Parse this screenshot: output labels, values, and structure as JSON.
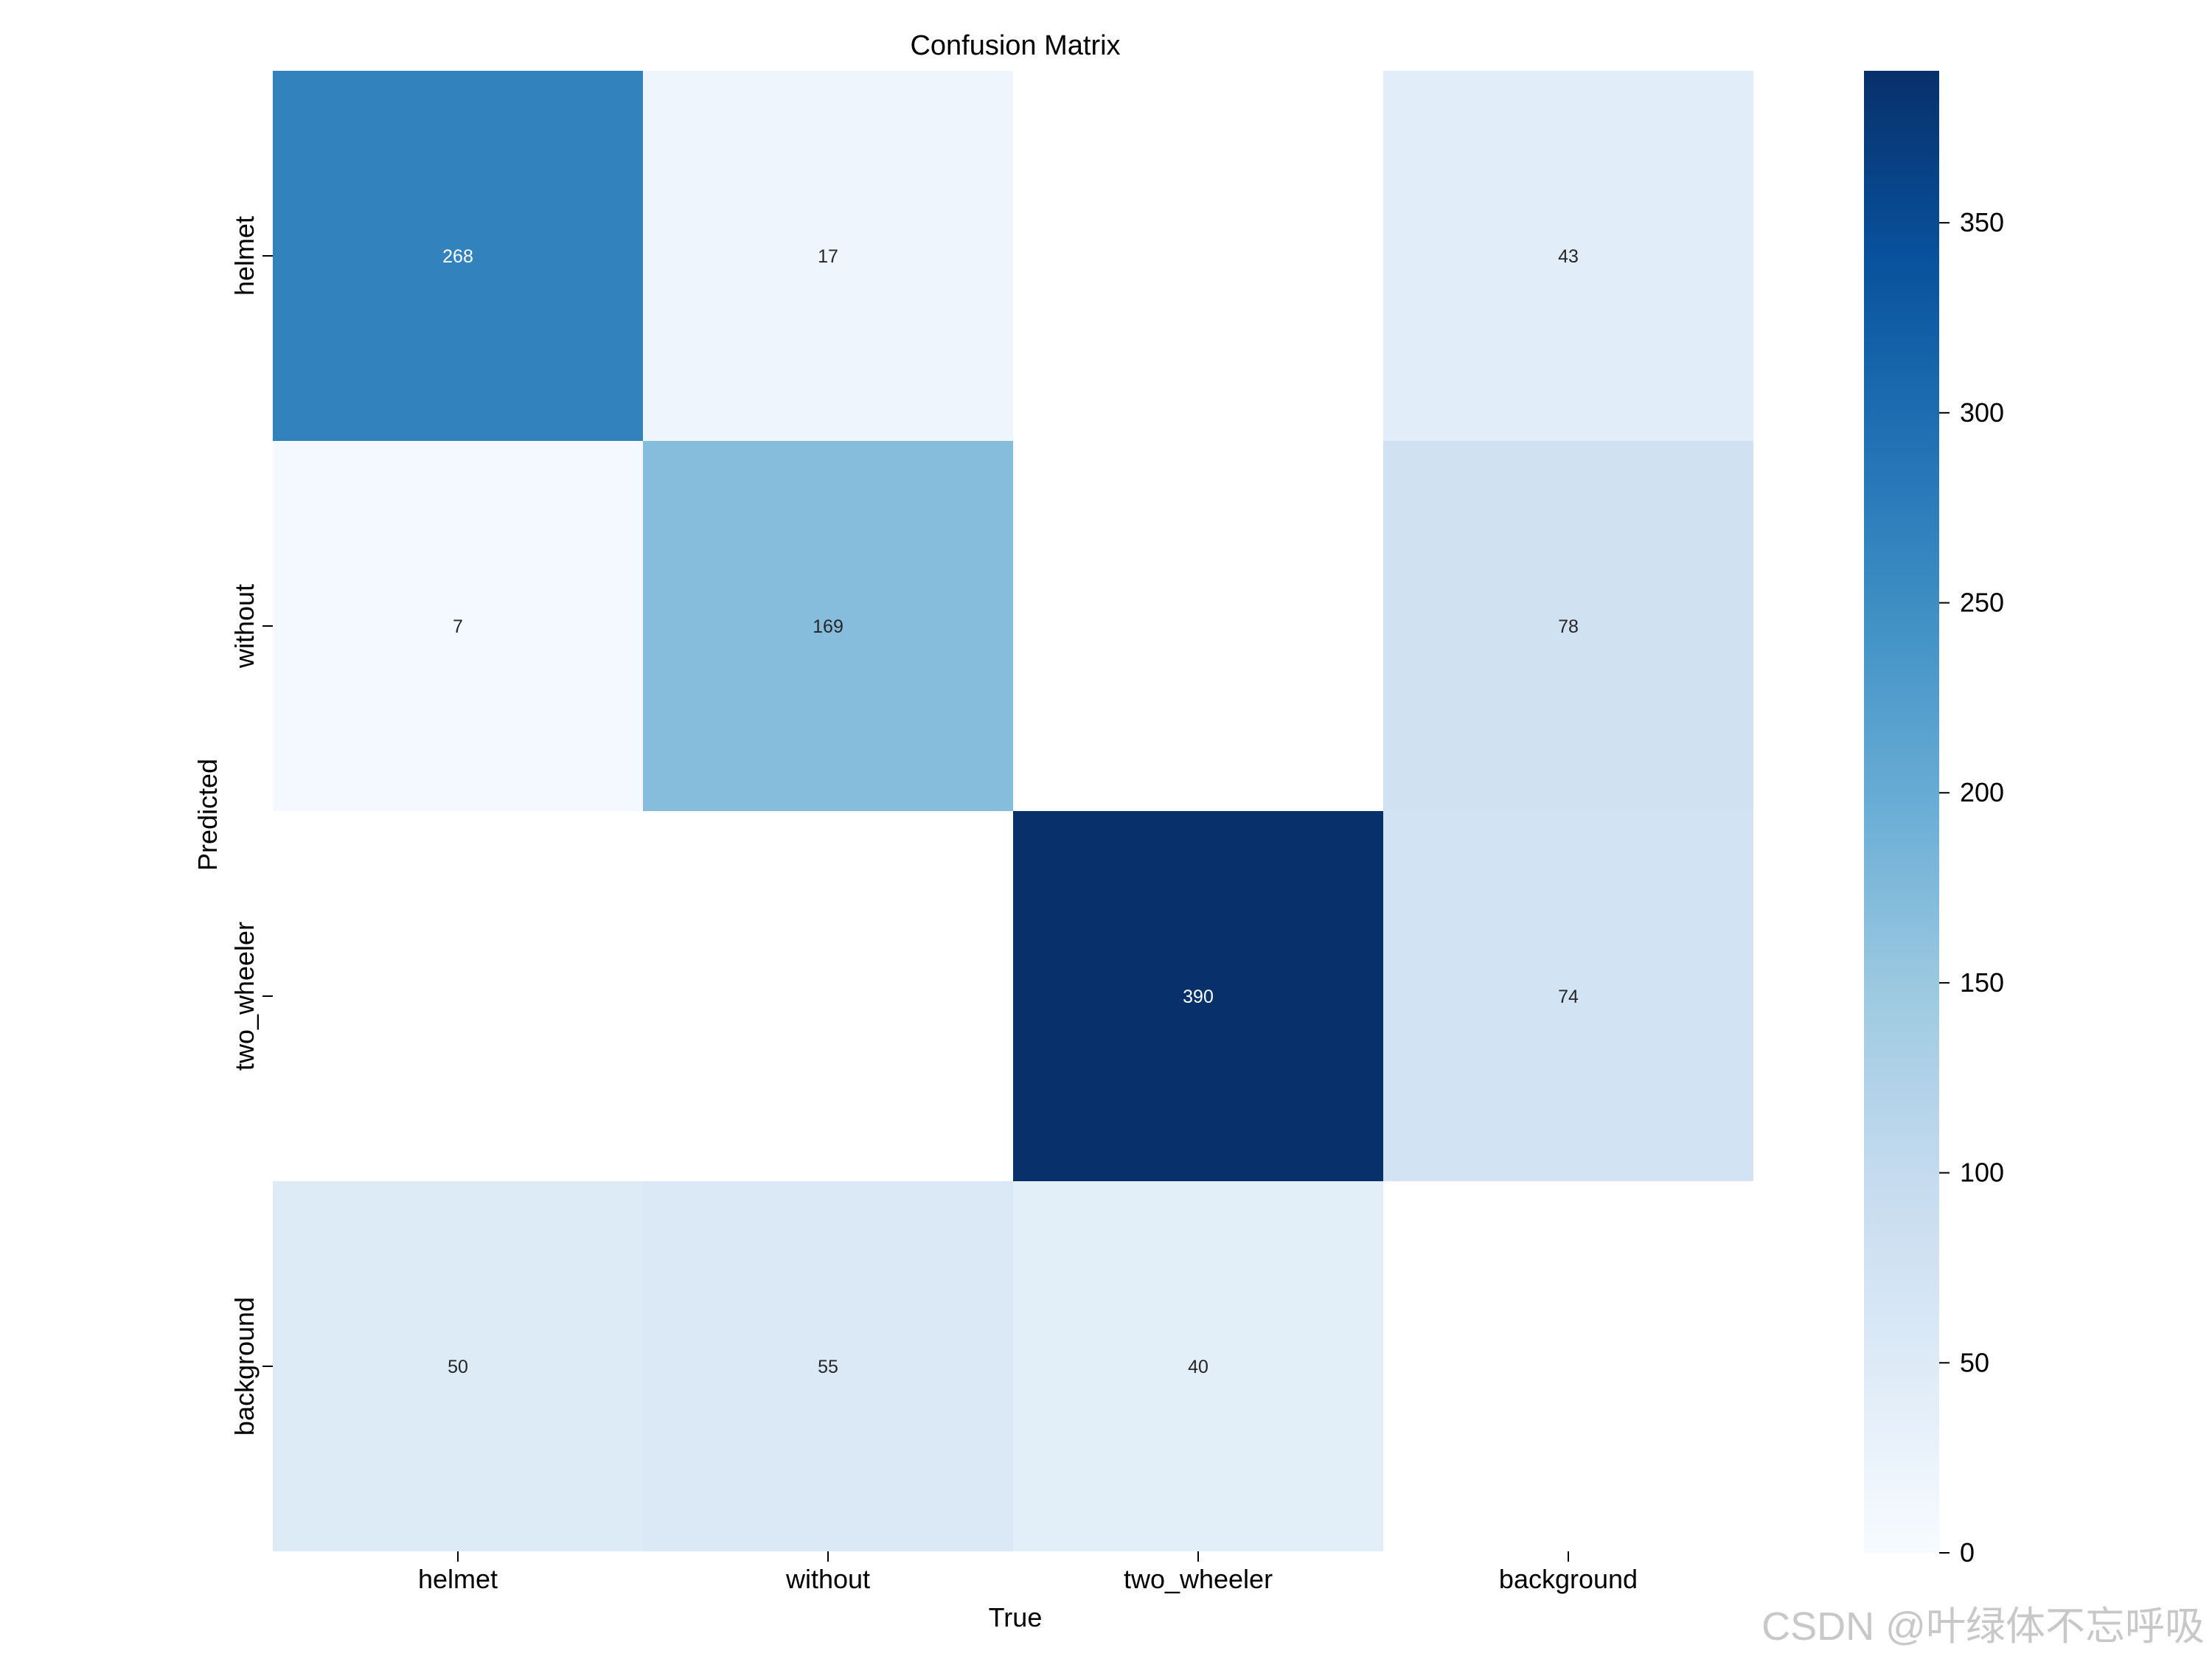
{
  "chart_data": {
    "type": "heatmap",
    "title": "Confusion Matrix",
    "xlabel": "True",
    "ylabel": "Predicted",
    "x_categories": [
      "helmet",
      "without",
      "two_wheeler",
      "background"
    ],
    "y_categories": [
      "helmet",
      "without",
      "two_wheeler",
      "background"
    ],
    "matrix": [
      [
        268,
        17,
        null,
        43
      ],
      [
        7,
        169,
        null,
        78
      ],
      [
        null,
        null,
        390,
        74
      ],
      [
        50,
        55,
        40,
        null
      ]
    ],
    "colormap": "Blues",
    "colorbar": {
      "range": [
        0,
        390
      ],
      "ticks": [
        0,
        50,
        100,
        150,
        200,
        250,
        300,
        350
      ]
    }
  },
  "watermark": "CSDN @叶绿体不忘呼吸"
}
